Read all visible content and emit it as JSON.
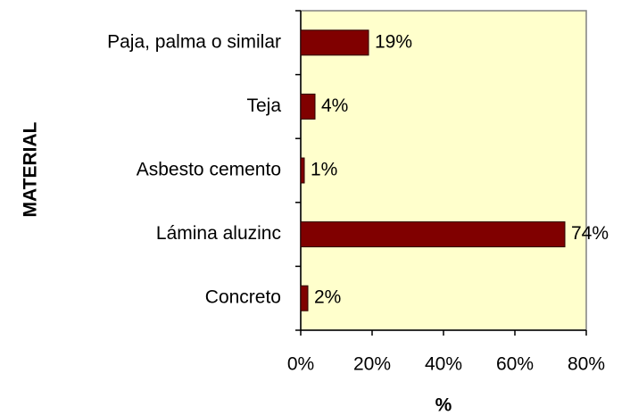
{
  "chart_data": {
    "type": "bar",
    "orientation": "horizontal",
    "categories": [
      "Paja, palma o similar",
      "Teja",
      "Asbesto cemento",
      "Lámina aluzinc",
      "Concreto"
    ],
    "values": [
      19,
      4,
      1,
      74,
      2
    ],
    "value_labels": [
      "19%",
      "4%",
      "1%",
      "74%",
      "2%"
    ],
    "color": "#800000",
    "xlabel": "%",
    "ylabel": "MATERIAL",
    "xlim": [
      0,
      80
    ],
    "xticks": [
      {
        "value": 0,
        "label": "0%"
      },
      {
        "value": 20,
        "label": "20%"
      },
      {
        "value": 40,
        "label": "40%"
      },
      {
        "value": 60,
        "label": "60%"
      },
      {
        "value": 80,
        "label": "80%"
      }
    ],
    "plot_background": "#ffffcc"
  }
}
